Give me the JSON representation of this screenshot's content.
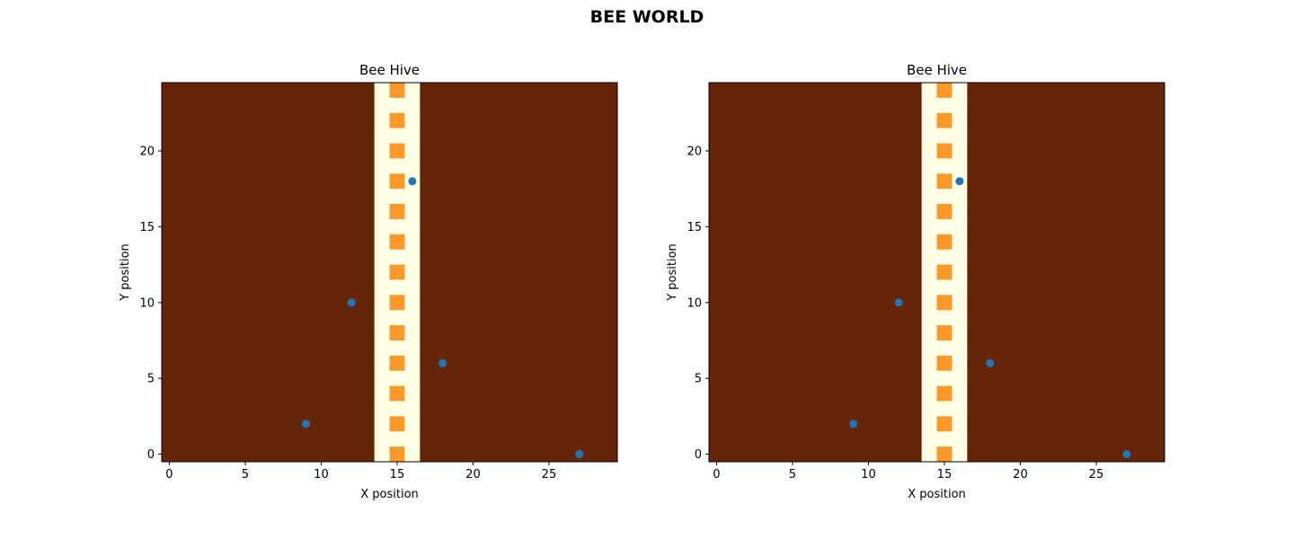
{
  "figure": {
    "suptitle": "BEE WORLD"
  },
  "colors": {
    "ground": "#662506",
    "hive": "#FFFFE5",
    "cell": "#FE9929",
    "bee": "#1F77B4"
  },
  "chart_data": [
    {
      "type": "scatter",
      "title": "Bee Hive",
      "xlabel": "X position",
      "ylabel": "Y position",
      "xlim": [
        -0.5,
        29.5
      ],
      "ylim": [
        -0.5,
        24.5
      ],
      "xticks": [
        0,
        5,
        10,
        15,
        20,
        25
      ],
      "yticks": [
        0,
        5,
        10,
        15,
        20
      ],
      "grid": false,
      "background_image": {
        "hive_columns": [
          14,
          16
        ],
        "hive_cells_x": 15,
        "hive_cells_y": [
          0,
          2,
          4,
          6,
          8,
          10,
          12,
          14,
          16,
          18,
          20,
          22,
          24
        ]
      },
      "series": [
        {
          "x": [
            9,
            12,
            18,
            16,
            27
          ],
          "y": [
            2,
            10,
            6,
            18,
            0
          ]
        }
      ]
    },
    {
      "type": "scatter",
      "title": "Bee Hive",
      "xlabel": "X position",
      "ylabel": "Y position",
      "xlim": [
        -0.5,
        29.5
      ],
      "ylim": [
        -0.5,
        24.5
      ],
      "xticks": [
        0,
        5,
        10,
        15,
        20,
        25
      ],
      "yticks": [
        0,
        5,
        10,
        15,
        20
      ],
      "grid": false,
      "background_image": {
        "hive_columns": [
          14,
          16
        ],
        "hive_cells_x": 15,
        "hive_cells_y": [
          0,
          2,
          4,
          6,
          8,
          10,
          12,
          14,
          16,
          18,
          20,
          22,
          24
        ]
      },
      "series": [
        {
          "x": [
            9,
            12,
            18,
            16,
            27
          ],
          "y": [
            2,
            10,
            6,
            18,
            0
          ]
        }
      ]
    }
  ]
}
